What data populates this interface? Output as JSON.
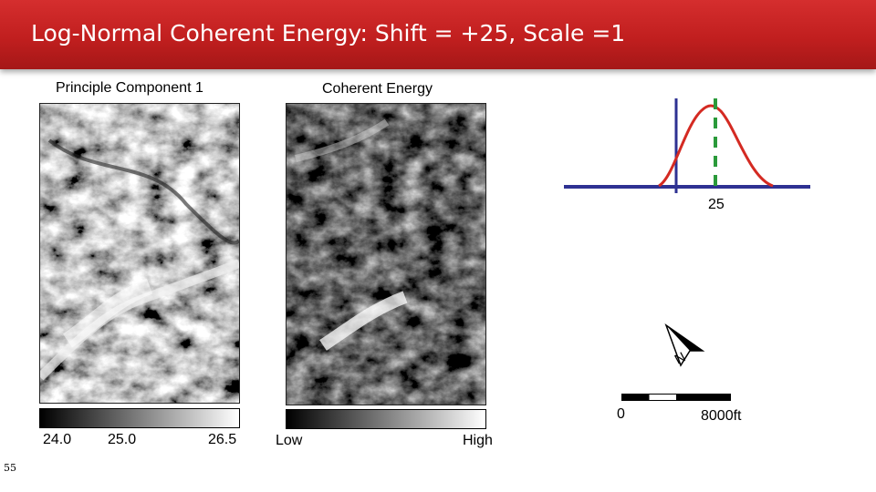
{
  "slide": {
    "title": "Log-Normal Coherent Energy: Shift = +25, Scale =1",
    "page_number": "55"
  },
  "panels": {
    "left": {
      "caption": "Principle Component 1",
      "colorbar_ticks": [
        "24.0",
        "25.0",
        "26.5"
      ]
    },
    "right": {
      "caption": "Coherent Energy",
      "colorbar_low": "Low",
      "colorbar_high": "High"
    }
  },
  "distribution": {
    "shift_label": "25",
    "axis_color": "#2e3192",
    "curve_color": "#d42a22",
    "shift_line_color": "#2a9a3a"
  },
  "scale_bar": {
    "start_label": "0",
    "end_label": "8000ft"
  },
  "north_arrow": {
    "label": "N"
  }
}
